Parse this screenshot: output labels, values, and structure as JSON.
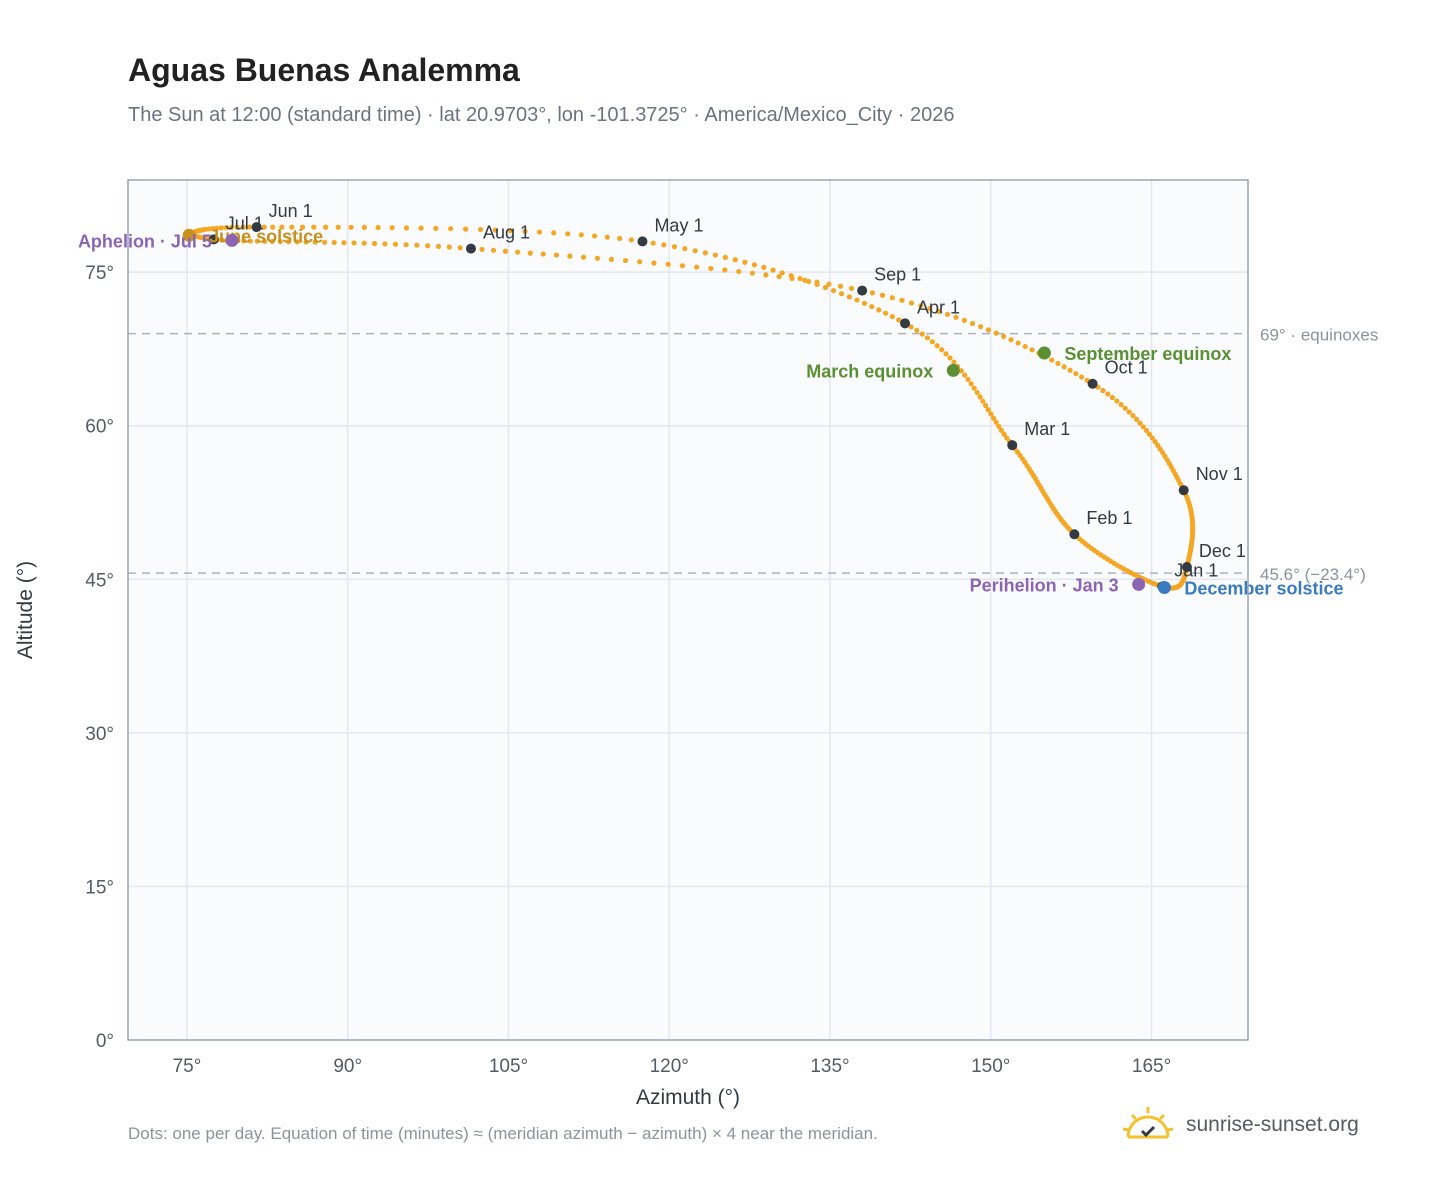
{
  "chart_data": {
    "type": "scatter",
    "title": "Aguas Buenas Analemma",
    "subtitle": "The Sun at 12:00 (standard time) · lat 20.9703°, lon -101.3725° · America/Mexico_City · 2026",
    "xlabel": "Azimuth (°)",
    "ylabel": "Altitude (°)",
    "xlim": [
      69.5,
      174
    ],
    "ylim": [
      0,
      84
    ],
    "x_ticks": [
      75,
      90,
      105,
      120,
      135,
      150,
      165
    ],
    "x_tick_labels": [
      "75°",
      "90°",
      "105°",
      "120°",
      "135°",
      "150°",
      "165°"
    ],
    "y_ticks": [
      0,
      15,
      30,
      45,
      60,
      75
    ],
    "y_tick_labels": [
      "0°",
      "15°",
      "30°",
      "45°",
      "60°",
      "75°"
    ],
    "grid": true,
    "path_key_points": [
      {
        "label": "Jan 1",
        "azimuth": 166.0,
        "altitude": 44.3
      },
      {
        "label": "Feb 1",
        "azimuth": 157.8,
        "altitude": 49.4
      },
      {
        "label": "Mar 1",
        "azimuth": 152.0,
        "altitude": 58.1
      },
      {
        "label": "Apr 1",
        "azimuth": 142.0,
        "altitude": 70.0
      },
      {
        "label": "May 1",
        "azimuth": 117.5,
        "altitude": 78.0
      },
      {
        "label": "Jun 1",
        "azimuth": 81.5,
        "altitude": 79.4
      },
      {
        "label": "Jul 1",
        "azimuth": 77.5,
        "altitude": 78.2
      },
      {
        "label": "Aug 1",
        "azimuth": 101.5,
        "altitude": 77.3
      },
      {
        "label": "Sep 1",
        "azimuth": 138.0,
        "altitude": 73.2
      },
      {
        "label": "Oct 1",
        "azimuth": 159.5,
        "altitude": 64.1
      },
      {
        "label": "Nov 1",
        "azimuth": 168.0,
        "altitude": 53.7
      },
      {
        "label": "Dec 1",
        "azimuth": 168.3,
        "altitude": 46.2
      }
    ],
    "special_points": [
      {
        "label": "March equinox",
        "azimuth": 146.5,
        "altitude": 65.4,
        "color": "#5a8f32"
      },
      {
        "label": "June solstice",
        "azimuth": 75.2,
        "altitude": 78.6,
        "color": "#c8911e"
      },
      {
        "label": "September equinox",
        "azimuth": 155.0,
        "altitude": 67.1,
        "color": "#5a8f32"
      },
      {
        "label": "December solstice",
        "azimuth": 166.2,
        "altitude": 44.2,
        "color": "#3a7abf"
      },
      {
        "label": "Perihelion · Jan 3",
        "azimuth": 163.8,
        "altitude": 44.5,
        "color": "#8c64b4"
      },
      {
        "label": "Aphelion · Jul 5",
        "azimuth": 79.2,
        "altitude": 78.1,
        "color": "#8c64b4"
      }
    ],
    "reference_lines": [
      {
        "altitude": 69.0,
        "label": "69° · equinoxes"
      },
      {
        "altitude": 45.6,
        "label": "45.6° (−23.4°)"
      }
    ],
    "series_color": "#f5a623"
  },
  "footnote": "Dots: one per day. Equation of time (minutes) ≈ (meridian azimuth − azimuth) × 4 near the meridian.",
  "brand": "sunrise-sunset.org"
}
